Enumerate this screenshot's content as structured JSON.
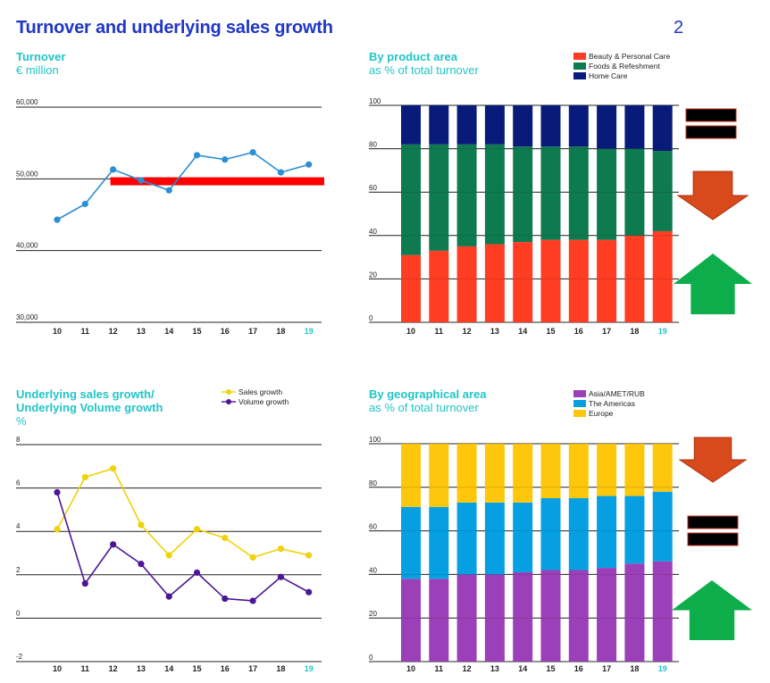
{
  "page": {
    "title": "Turnover and underlying sales growth",
    "number": "2"
  },
  "colors": {
    "title": "#1f36c7",
    "accent": "#21c5c7",
    "turnover_line": "#2b8fd4",
    "highlight_bar": "#ff0000",
    "beauty": "#fe3d22",
    "foods": "#0e7a4f",
    "home": "#081b7a",
    "asia": "#9b40b8",
    "americas": "#06a0e2",
    "europe": "#fec70b",
    "sales_growth": "#f0d20a",
    "volume_growth": "#4b1796",
    "arrow_down": "#d84a1b",
    "arrow_up": "#0ead4b",
    "equal_sign": "#000000"
  },
  "panels": {
    "turnover": {
      "title": "Turnover",
      "subtitle": "€ million"
    },
    "product": {
      "title": "By product area",
      "subtitle": "as % of total turnover"
    },
    "growth": {
      "title_line1": "Underlying sales growth/",
      "title_line2": "Underlying Volume growth",
      "subtitle": "%"
    },
    "geo": {
      "title": "By geographical area",
      "subtitle": "as % of total turnover"
    }
  },
  "chart_data": [
    {
      "id": "turnover",
      "type": "line",
      "title": "Turnover",
      "ylabel": "€ million",
      "categories": [
        "10",
        "11",
        "12",
        "13",
        "14",
        "15",
        "16",
        "17",
        "18",
        "19"
      ],
      "highlight_category": "19",
      "ylim": [
        30000,
        60000
      ],
      "yticks": [
        30000,
        40000,
        50000,
        60000
      ],
      "ytick_labels": [
        "30,000",
        "40,000",
        "50,000",
        "60,000"
      ],
      "series": [
        {
          "name": "Turnover",
          "values": [
            44300,
            46500,
            51300,
            49800,
            48400,
            53300,
            52700,
            53700,
            50900,
            52000
          ]
        }
      ],
      "annotation_band": {
        "from_category": "12",
        "to_category": "19",
        "value": 49600,
        "note": "red highlight bar"
      }
    },
    {
      "id": "product",
      "type": "bar",
      "stacked": true,
      "title": "By product area",
      "ylabel": "as % of total turnover",
      "categories": [
        "10",
        "11",
        "12",
        "13",
        "14",
        "15",
        "16",
        "17",
        "18",
        "19"
      ],
      "highlight_category": "19",
      "ylim": [
        0,
        100
      ],
      "yticks": [
        0,
        20,
        40,
        60,
        80,
        100
      ],
      "ytick_labels": [
        "0",
        "20",
        "40",
        "60",
        "80",
        "100"
      ],
      "legend_position": "top-right",
      "series": [
        {
          "name": "Beauty & Personal Care",
          "values": [
            31,
            33,
            35,
            36,
            37,
            38,
            38,
            38,
            40,
            42
          ]
        },
        {
          "name": "Foods & Refeshment",
          "values": [
            51,
            49,
            47,
            46,
            44,
            43,
            43,
            42,
            40,
            37
          ]
        },
        {
          "name": "Home Care",
          "values": [
            18,
            18,
            18,
            18,
            19,
            19,
            19,
            20,
            20,
            21
          ]
        }
      ],
      "side_markers": [
        "equal",
        "down",
        "up"
      ]
    },
    {
      "id": "growth",
      "type": "line",
      "title": "Underlying sales growth/ Underlying Volume growth",
      "ylabel": "%",
      "categories": [
        "10",
        "11",
        "12",
        "13",
        "14",
        "15",
        "16",
        "17",
        "18",
        "19"
      ],
      "highlight_category": "19",
      "ylim": [
        -2,
        8
      ],
      "yticks": [
        -2,
        0,
        2,
        4,
        6,
        8
      ],
      "ytick_labels": [
        "-2",
        "0",
        "2",
        "4",
        "6",
        "8"
      ],
      "legend_position": "top-right",
      "series": [
        {
          "name": "Sales growth",
          "values": [
            4.1,
            6.5,
            6.9,
            4.3,
            2.9,
            4.1,
            3.7,
            2.8,
            3.2,
            2.9
          ]
        },
        {
          "name": "Volume growth",
          "values": [
            5.8,
            1.6,
            3.4,
            2.5,
            1.0,
            2.1,
            0.9,
            0.8,
            1.9,
            1.2
          ]
        }
      ]
    },
    {
      "id": "geo",
      "type": "bar",
      "stacked": true,
      "title": "By geographical area",
      "ylabel": "as % of total turnover",
      "categories": [
        "10",
        "11",
        "12",
        "13",
        "14",
        "15",
        "16",
        "17",
        "18",
        "19"
      ],
      "highlight_category": "19",
      "ylim": [
        0,
        100
      ],
      "yticks": [
        0,
        20,
        40,
        60,
        80,
        100
      ],
      "ytick_labels": [
        "0",
        "20",
        "40",
        "60",
        "80",
        "100"
      ],
      "legend_position": "top-right",
      "series": [
        {
          "name": "Asia/AMET/RUB",
          "values": [
            38,
            38,
            40,
            40,
            41,
            42,
            42,
            43,
            45,
            46
          ]
        },
        {
          "name": "The Americas",
          "values": [
            33,
            33,
            33,
            33,
            32,
            33,
            33,
            33,
            31,
            32
          ]
        },
        {
          "name": "Europe",
          "values": [
            29,
            29,
            27,
            27,
            27,
            25,
            25,
            24,
            24,
            22
          ]
        }
      ],
      "side_markers": [
        "down",
        "equal",
        "up"
      ]
    }
  ]
}
